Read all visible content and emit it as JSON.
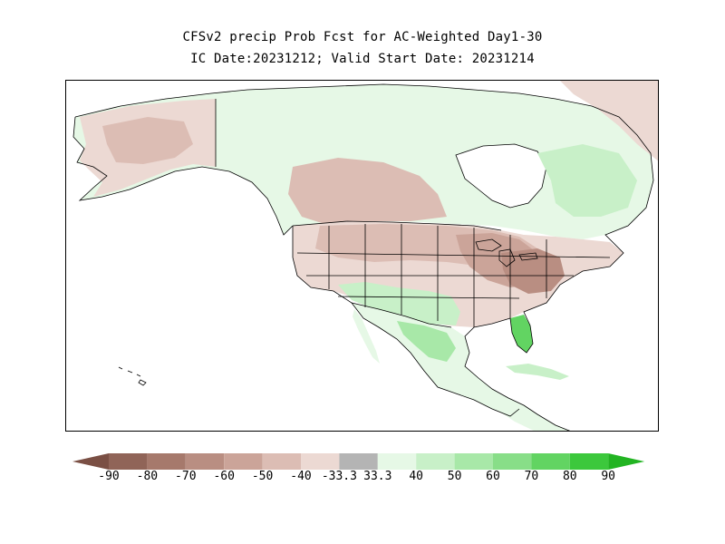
{
  "title": {
    "line1": "CFSv2 precip Prob Fcst for AC-Weighted Day1-30",
    "line2": "IC Date:20231212; Valid Start Date: 20231214"
  },
  "colorbar": {
    "labels": [
      "-90",
      "-80",
      "-70",
      "-60",
      "-50",
      "-40",
      "-33.3",
      "33.3",
      "40",
      "50",
      "60",
      "70",
      "80",
      "90"
    ],
    "colors": [
      "#7a4f44",
      "#906458",
      "#a6796c",
      "#b98e82",
      "#cba499",
      "#dcbdb4",
      "#ecd9d3",
      "#b4b4b4",
      "#e6f8e6",
      "#c8f0c8",
      "#a8e8a8",
      "#88de88",
      "#62d462",
      "#3cc83c",
      "#22b422"
    ]
  },
  "map_colors": {
    "land_neutral": "#ffffff",
    "dry_light": "#ecd9d3",
    "dry_medium": "#dcbdb4",
    "dry_strong": "#cba499",
    "dry_heavy": "#b98e82",
    "wet_light": "#e6f8e6",
    "wet_medium": "#c8f0c8",
    "wet_strong": "#a8e8a8",
    "wet_heavy": "#62d462",
    "border": "#000000"
  }
}
